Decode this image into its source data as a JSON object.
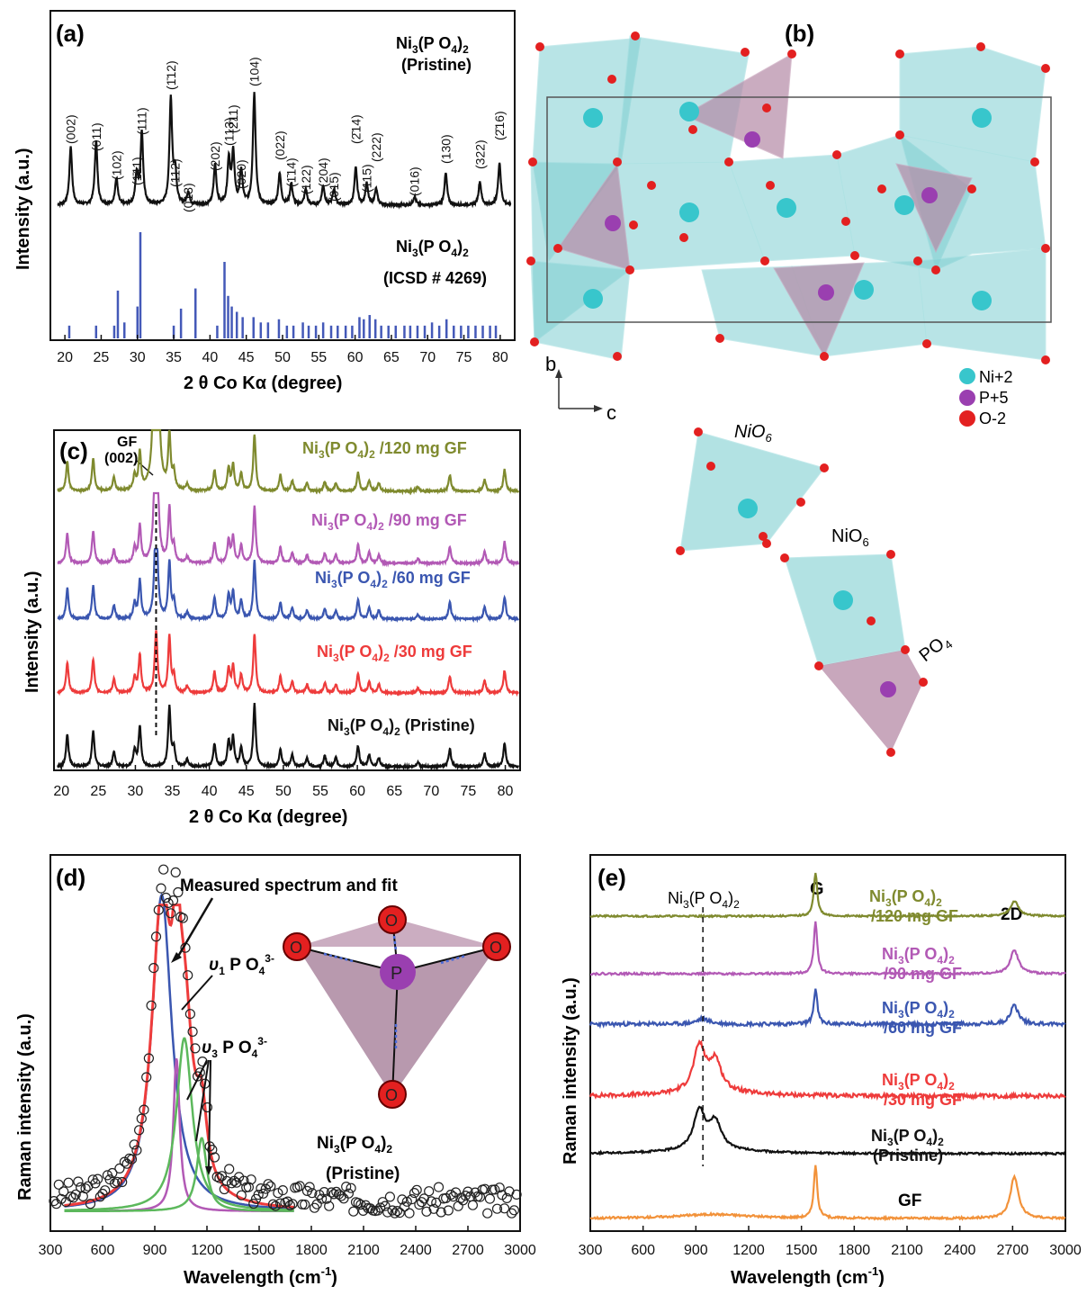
{
  "colors": {
    "black": "#111111",
    "olive": "#7f8a2e",
    "magenta": "#b259b5",
    "blue": "#3a56b0",
    "red": "#ee3b3b",
    "orange": "#f2923a",
    "ref_bar": "#4459b8",
    "ni": "#38c6cc",
    "p": "#9a3fb0",
    "o": "#e32020",
    "teal_face": "#7fcfd2",
    "mauve_face": "#b58aa6"
  },
  "panel_a": {
    "label": "(a)",
    "pristine_label_main": "Ni",
    "pristine_label_sub1": "3",
    "pristine_label_mid": "(P O",
    "pristine_label_sub2": "4",
    "pristine_label_end": ")",
    "pristine_label_sub3": "2",
    "pristine_label_line2": "(Pristine)",
    "ref_label_main": "Ni",
    "ref_label_sub1": "3",
    "ref_label_mid": "(P O",
    "ref_label_sub2": "4",
    "ref_label_end": ")",
    "ref_label_sub3": "2",
    "ref_label_line2": "(ICSD # 4269)",
    "ylabel": "Intensity (a.u.)",
    "xlabel": "2 θ Co Kα  (degree)",
    "peak_labels": [
      "(002)",
      "(011)",
      "(102)",
      "(1̄11)",
      "(111)",
      "(1̄12)",
      "(112)",
      "(013)",
      "(202)",
      "(113)",
      "(2̄11)",
      "(020)",
      "(104)",
      "(022)",
      "(1̄14)",
      "(122)",
      "(204)",
      "(015)",
      "(2̄14)",
      "(115)",
      "(222)",
      "(016)",
      "(130)",
      "(322)",
      "(2̄16)"
    ]
  },
  "panel_b": {
    "label": "(b)",
    "axis_b": "b",
    "axis_c": "c",
    "legend": [
      "Ni+2",
      "P+5",
      "O-2"
    ],
    "nio6_label_1": "NiO",
    "nio6_sub_1": "6",
    "nio6_label_2": "NiO",
    "nio6_sub_2": "6",
    "po4_label": "PO",
    "po4_sub": "4"
  },
  "panel_c": {
    "label": "(c)",
    "gf_label": "GF",
    "gf_index": "(002)",
    "ylabel": "Intensity (a.u.)",
    "xlabel": "2 θ Co Kα  (degree)",
    "series_labels": [
      {
        "pre": "Ni",
        "s1": "3",
        "mid": "(P O",
        "s2": "4",
        "end": ")",
        "s3": "2",
        "tail": " /120 mg GF"
      },
      {
        "pre": "Ni",
        "s1": "3",
        "mid": "(P O",
        "s2": "4",
        "end": ")",
        "s3": "2",
        "tail": " /90 mg GF"
      },
      {
        "pre": "Ni",
        "s1": "3",
        "mid": "(P O",
        "s2": "4",
        "end": ")",
        "s3": "2",
        "tail": " /60 mg GF"
      },
      {
        "pre": "Ni",
        "s1": "3",
        "mid": "(P O",
        "s2": "4",
        "end": ")",
        "s3": "2",
        "tail": " /30 mg GF"
      },
      {
        "pre": "Ni",
        "s1": "3",
        "mid": "(P O",
        "s2": "4",
        "end": ")",
        "s3": "2",
        "tail": " (Pristine)"
      }
    ]
  },
  "panel_d": {
    "label": "(d)",
    "annotation": "Measured spectrum and fit",
    "v1_label": "υ",
    "v1_sub": "1",
    "v1_rest": " P O",
    "v1_sub2": "4",
    "v1_sup": "3-",
    "v3_label": "υ",
    "v3_sub": "3",
    "v3_rest": " P O",
    "v3_sub2": "4",
    "v3_sup": "3-",
    "sample_main": "Ni",
    "sample_s1": "3",
    "sample_mid": "(P O",
    "sample_s2": "4",
    "sample_end": ")",
    "sample_s3": "2",
    "sample_line2": "(Pristine)",
    "atom_p": "P",
    "atom_o": "O",
    "ylabel": "Raman intensity (a.u.)",
    "xlabel_main": "Wavelength (cm",
    "xlabel_sup": "-1",
    "xlabel_end": ")"
  },
  "panel_e": {
    "label": "(e)",
    "marker_main": "Ni",
    "marker_s1": "3",
    "marker_mid": "(P O",
    "marker_s2": "4",
    "marker_end": ")",
    "marker_s3": "2",
    "g_label": "G",
    "twod_label": "2D",
    "gf_label": "GF",
    "series_labels": [
      {
        "line2": "/120 mg GF"
      },
      {
        "line2": "/90 mg GF"
      },
      {
        "line2": "/60 mg GF"
      },
      {
        "line2": "/30 mg GF"
      },
      {
        "line2": "(Pristine)"
      }
    ],
    "ylabel": "Raman intensity (a.u.)",
    "xlabel_main": "Wavelength (cm",
    "xlabel_sup": "-1",
    "xlabel_end": ")"
  },
  "chart_data": [
    {
      "panel": "a",
      "type": "line",
      "xlabel": "2 θ Co Kα  (degree)",
      "ylabel": "Intensity (a.u.)",
      "xlim": [
        18,
        82
      ],
      "xticks": [
        20,
        25,
        30,
        35,
        40,
        45,
        50,
        55,
        60,
        65,
        70,
        75,
        80
      ],
      "series": [
        {
          "name": "Ni3(PO4)2 (Pristine)",
          "peaks": [
            [
              20.8,
              0.55
            ],
            [
              24.3,
              0.6
            ],
            [
              27.1,
              0.25
            ],
            [
              29.9,
              0.28
            ],
            [
              30.6,
              0.68
            ],
            [
              34.6,
              1.0
            ],
            [
              35.2,
              0.3
            ],
            [
              37.0,
              0.12
            ],
            [
              40.7,
              0.38
            ],
            [
              42.6,
              0.42
            ],
            [
              43.2,
              0.48
            ],
            [
              44.3,
              0.32
            ],
            [
              46.1,
              1.05
            ],
            [
              49.6,
              0.3
            ],
            [
              51.2,
              0.2
            ],
            [
              53.2,
              0.15
            ],
            [
              55.6,
              0.18
            ],
            [
              57.1,
              0.15
            ],
            [
              60.1,
              0.35
            ],
            [
              61.6,
              0.2
            ],
            [
              62.9,
              0.15
            ],
            [
              68.2,
              0.08
            ],
            [
              72.5,
              0.3
            ],
            [
              77.2,
              0.22
            ],
            [
              79.9,
              0.4
            ]
          ]
        },
        {
          "name": "Ni3(PO4)2 (ICSD # 4269)",
          "type": "bar",
          "x": [
            20.6,
            24.3,
            26.8,
            27.3,
            28.2,
            30.0,
            30.4,
            35.0,
            36.0,
            38.0,
            41.0,
            42.0,
            42.5,
            43.0,
            43.7,
            44.5,
            46.0,
            47.0,
            48.0,
            49.5,
            50.6,
            51.5,
            52.8,
            53.6,
            54.6,
            55.6,
            56.7,
            57.6,
            58.7,
            59.6,
            60.6,
            61.2,
            62.0,
            62.8,
            63.6,
            64.6,
            65.6,
            66.8,
            67.6,
            68.6,
            69.6,
            70.6,
            71.6,
            72.6,
            73.6,
            74.6,
            75.6,
            76.6,
            77.6,
            78.6,
            79.4
          ],
          "values": [
            0.12,
            0.12,
            0.12,
            0.45,
            0.15,
            0.3,
            1.0,
            0.12,
            0.28,
            0.47,
            0.12,
            0.72,
            0.4,
            0.3,
            0.25,
            0.2,
            0.2,
            0.15,
            0.15,
            0.18,
            0.12,
            0.12,
            0.15,
            0.12,
            0.12,
            0.15,
            0.12,
            0.12,
            0.12,
            0.12,
            0.2,
            0.18,
            0.22,
            0.18,
            0.12,
            0.12,
            0.12,
            0.12,
            0.12,
            0.12,
            0.12,
            0.15,
            0.12,
            0.18,
            0.12,
            0.12,
            0.12,
            0.12,
            0.12,
            0.12,
            0.12
          ]
        }
      ]
    },
    {
      "panel": "c",
      "type": "line",
      "xlabel": "2 θ Co Kα  (degree)",
      "ylabel": "Intensity (a.u.)",
      "xlim": [
        19,
        82
      ],
      "xticks": [
        20,
        25,
        30,
        35,
        40,
        45,
        50,
        55,
        60,
        65,
        70,
        75,
        80
      ],
      "gf_peak_x": 32.8,
      "series": [
        {
          "name": "Ni3(PO4)2 /120 mg GF",
          "color": "#7f8a2e"
        },
        {
          "name": "Ni3(PO4)2 /90 mg GF",
          "color": "#b259b5"
        },
        {
          "name": "Ni3(PO4)2 /60 mg GF",
          "color": "#3a56b0"
        },
        {
          "name": "Ni3(PO4)2 /30 mg GF",
          "color": "#ee3b3b"
        },
        {
          "name": "Ni3(PO4)2 (Pristine)",
          "color": "#111111"
        }
      ]
    },
    {
      "panel": "d",
      "type": "scatter",
      "xlabel": "Wavelength (cm-1)",
      "ylabel": "Raman intensity (a.u.)",
      "xlim": [
        300,
        3000
      ],
      "xticks": [
        300,
        600,
        900,
        1200,
        1500,
        1800,
        2100,
        2400,
        2700,
        3000
      ],
      "components": [
        {
          "name": "measured",
          "marker": "open-circle",
          "color": "#111111"
        },
        {
          "name": "fit",
          "color": "#ee3b3b"
        },
        {
          "name": "ν1 P O4 3- component",
          "center": 940,
          "color": "#3a56b0"
        },
        {
          "name": "ν3 P O4 3- component A",
          "center": 1020,
          "color": "#b259b5"
        },
        {
          "name": "ν3 P O4 3- component B",
          "center": 1070,
          "color": "#5cb85c"
        },
        {
          "name": "ν3 P O4 3- component C",
          "center": 1170,
          "color": "#5cb85c"
        }
      ]
    },
    {
      "panel": "e",
      "type": "line",
      "xlabel": "Wavelength (cm-1)",
      "ylabel": "Raman intensity (a.u.)",
      "xlim": [
        300,
        3000
      ],
      "xticks": [
        300,
        600,
        900,
        1200,
        1500,
        1800,
        2100,
        2400,
        2700,
        3000
      ],
      "marker_x": 940,
      "series": [
        {
          "name": "Ni3(PO4)2 /120 mg GF",
          "color": "#7f8a2e",
          "peaks": [
            [
              1580,
              1.0
            ],
            [
              2710,
              0.35
            ]
          ]
        },
        {
          "name": "Ni3(PO4)2 /90 mg GF",
          "color": "#b259b5",
          "peaks": [
            [
              1580,
              1.0
            ],
            [
              2710,
              0.45
            ]
          ]
        },
        {
          "name": "Ni3(PO4)2 /60 mg GF",
          "color": "#3a56b0",
          "peaks": [
            [
              940,
              0.12
            ],
            [
              1580,
              0.75
            ],
            [
              2710,
              0.4
            ]
          ]
        },
        {
          "name": "Ni3(PO4)2 /30 mg GF",
          "color": "#ee3b3b",
          "peaks": [
            [
              920,
              0.9
            ],
            [
              1010,
              0.6
            ]
          ]
        },
        {
          "name": "Ni3(PO4)2 (Pristine)",
          "color": "#111111",
          "peaks": [
            [
              920,
              0.8
            ],
            [
              1010,
              0.55
            ]
          ]
        },
        {
          "name": "GF",
          "color": "#f2923a",
          "peaks": [
            [
              1580,
              1.0
            ],
            [
              2710,
              0.8
            ]
          ]
        }
      ]
    }
  ]
}
